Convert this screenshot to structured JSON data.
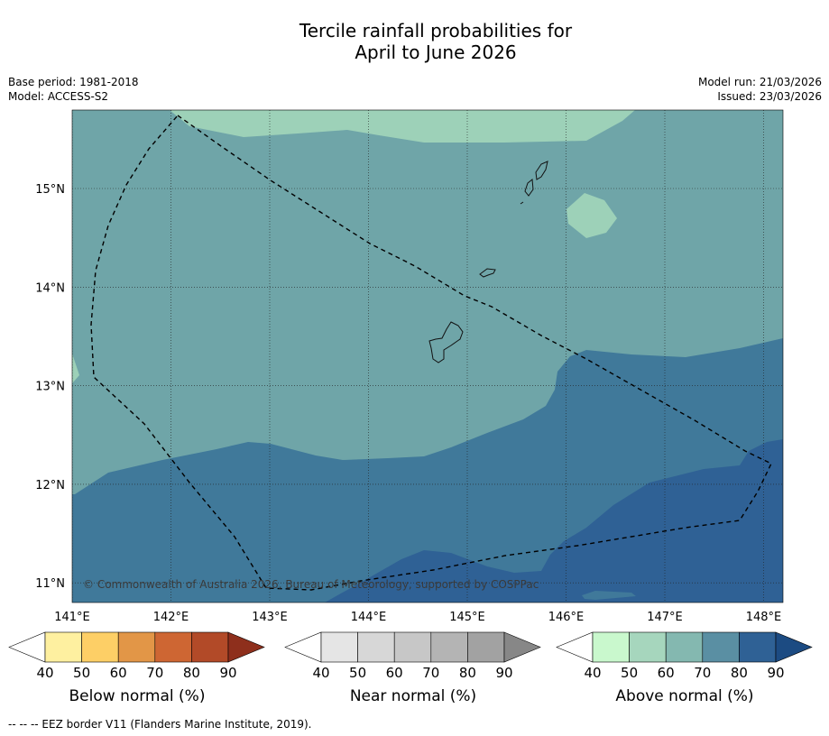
{
  "title_line1": "Tercile rainfall probabilities for",
  "title_line2": "April to June 2026",
  "meta_left": [
    "Base period: 1981-2018",
    "Model: ACCESS-S2"
  ],
  "meta_right": [
    "Model run: 21/03/2026",
    "Issued: 23/03/2026"
  ],
  "map": {
    "lat_labels": [
      "15°N",
      "14°N",
      "13°N",
      "12°N",
      "11°N"
    ],
    "lon_labels": [
      "141°E",
      "142°E",
      "143°E",
      "144°E",
      "145°E",
      "146°E",
      "147°E",
      "148°E"
    ],
    "lat_values": [
      15,
      14,
      13,
      12,
      11
    ],
    "lon_values": [
      141,
      142,
      143,
      144,
      145,
      146,
      147,
      148
    ],
    "copyright": "© Commonwealth of Australia 2026, Bureau of Meteorology, supported by COSPPac",
    "region_colors": {
      "above_70": "#6fa5a8",
      "above_60": "#9dd1b8",
      "above_80": "#40799a",
      "above_90": "#2f6195"
    }
  },
  "colorbars": [
    {
      "label": "Below normal (%)",
      "ticks": [
        "40",
        "50",
        "60",
        "70",
        "80",
        "90"
      ],
      "colors": [
        "#ffffff",
        "#fef0a0",
        "#fdcf66",
        "#e29647",
        "#ce6633",
        "#b24a28",
        "#8e2f1c"
      ]
    },
    {
      "label": "Near normal (%)",
      "ticks": [
        "40",
        "50",
        "60",
        "70",
        "80",
        "90"
      ],
      "colors": [
        "#ffffff",
        "#e5e5e5",
        "#d7d7d7",
        "#c7c7c7",
        "#b4b4b4",
        "#a2a2a2",
        "#878787"
      ]
    },
    {
      "label": "Above normal (%)",
      "ticks": [
        "40",
        "50",
        "60",
        "70",
        "80",
        "90"
      ],
      "colors": [
        "#ffffff",
        "#c9f8cd",
        "#a6d6bd",
        "#84b8b0",
        "#5a8fa3",
        "#2f6195",
        "#1c4b82"
      ]
    }
  ],
  "footnote": "--  --  -- EEZ border V11 (Flanders Marine Institute, 2019)."
}
